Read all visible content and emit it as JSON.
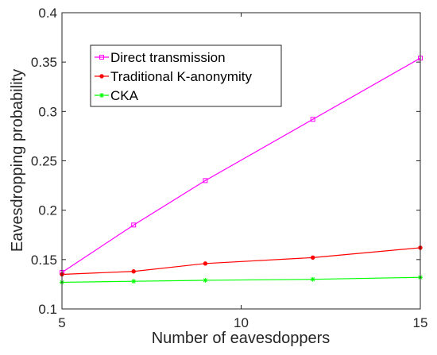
{
  "chart_data": {
    "type": "line",
    "xlabel": "Number of eavesdoppers",
    "ylabel": "Eavesdropping probability",
    "xlim": [
      5,
      15
    ],
    "ylim": [
      0.1,
      0.4
    ],
    "xticks": [
      5,
      10,
      15
    ],
    "yticks": [
      0.1,
      0.15,
      0.2,
      0.25,
      0.3,
      0.35,
      0.4
    ],
    "grid": false,
    "legend_position": "top-left",
    "series": [
      {
        "name": "Direct transmission",
        "color": "#ff00ff",
        "marker": "square",
        "x": [
          5,
          7,
          9,
          12,
          15
        ],
        "y": [
          0.137,
          0.185,
          0.23,
          0.292,
          0.354
        ]
      },
      {
        "name": "Traditional K-anonymity",
        "color": "#ff0000",
        "marker": "dot",
        "x": [
          5,
          7,
          9,
          12,
          15
        ],
        "y": [
          0.135,
          0.138,
          0.146,
          0.152,
          0.162
        ]
      },
      {
        "name": "CKA",
        "color": "#00ff00",
        "marker": "star",
        "x": [
          5,
          7,
          9,
          12,
          15
        ],
        "y": [
          0.127,
          0.128,
          0.129,
          0.13,
          0.132
        ]
      }
    ]
  }
}
